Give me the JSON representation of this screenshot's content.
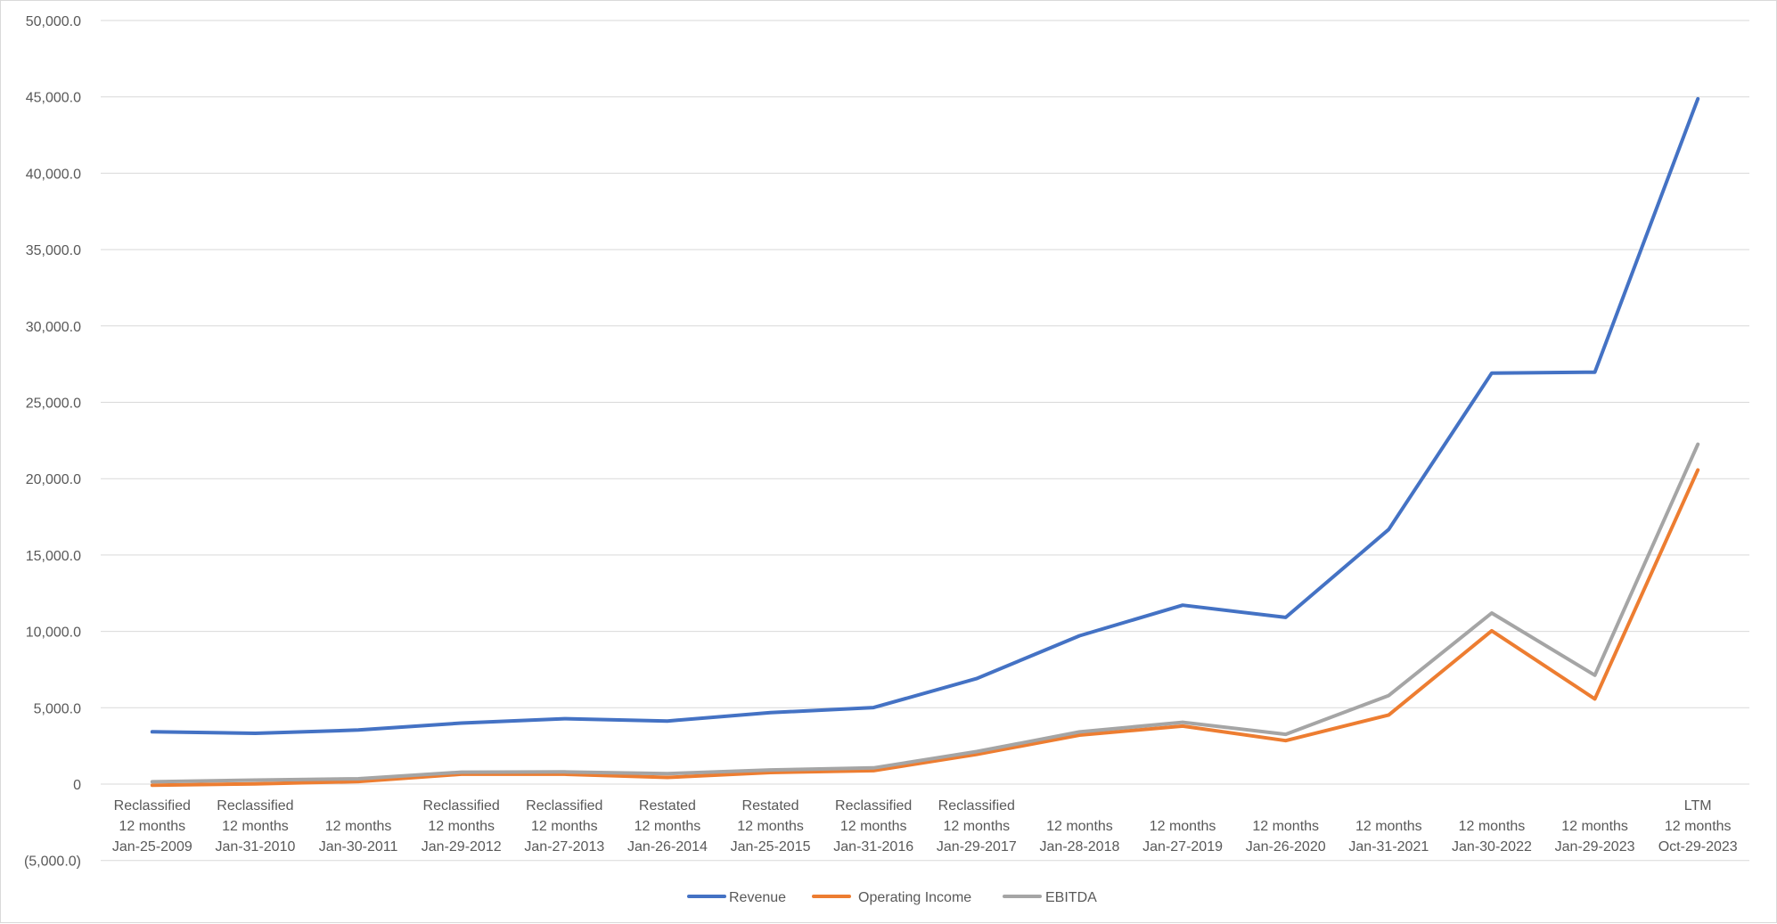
{
  "chart_data": {
    "type": "line",
    "title": "",
    "xlabel": "",
    "ylabel": "",
    "ylim": [
      -5000,
      50000
    ],
    "ytick_values": [
      -5000,
      0,
      5000,
      10000,
      15000,
      20000,
      25000,
      30000,
      35000,
      40000,
      45000,
      50000
    ],
    "ytick_labels": [
      "(5,000.0)",
      "0",
      "5,000.0",
      "10,000.0",
      "15,000.0",
      "20,000.0",
      "25,000.0",
      "30,000.0",
      "35,000.0",
      "40,000.0",
      "45,000.0",
      "50,000.0"
    ],
    "grid": true,
    "legend_position": "bottom",
    "categories": [
      [
        "Reclassified",
        "12 months",
        "Jan-25-2009"
      ],
      [
        "Reclassified",
        "12 months",
        "Jan-31-2010"
      ],
      [
        "12 months",
        "Jan-30-2011"
      ],
      [
        "Reclassified",
        "12 months",
        "Jan-29-2012"
      ],
      [
        "Reclassified",
        "12 months",
        "Jan-27-2013"
      ],
      [
        "Restated",
        "12 months",
        "Jan-26-2014"
      ],
      [
        "Restated",
        "12 months",
        "Jan-25-2015"
      ],
      [
        "Reclassified",
        "12 months",
        "Jan-31-2016"
      ],
      [
        "Reclassified",
        "12 months",
        "Jan-29-2017"
      ],
      [
        "12 months",
        "Jan-28-2018"
      ],
      [
        "12 months",
        "Jan-27-2019"
      ],
      [
        "12 months",
        "Jan-26-2020"
      ],
      [
        "12 months",
        "Jan-31-2021"
      ],
      [
        "12 months",
        "Jan-30-2022"
      ],
      [
        "12 months",
        "Jan-29-2023"
      ],
      [
        "LTM",
        "12 months",
        "Oct-29-2023"
      ]
    ],
    "series": [
      {
        "name": "Revenue",
        "color": "#4472c4",
        "values": [
          3425,
          3326,
          3543,
          3998,
          4280,
          4130,
          4682,
          5010,
          6910,
          9714,
          11716,
          10918,
          16675,
          26914,
          26974,
          44870
        ]
      },
      {
        "name": "Operating Income",
        "color": "#ed7d31",
        "values": [
          -70,
          20,
          170,
          650,
          650,
          440,
          760,
          880,
          1940,
          3210,
          3800,
          2850,
          4530,
          10040,
          5580,
          20570
        ]
      },
      {
        "name": "EBITDA",
        "color": "#a5a5a5",
        "values": [
          150,
          260,
          350,
          780,
          800,
          690,
          930,
          1060,
          2130,
          3420,
          4050,
          3260,
          5800,
          11200,
          7130,
          22250
        ]
      }
    ]
  }
}
